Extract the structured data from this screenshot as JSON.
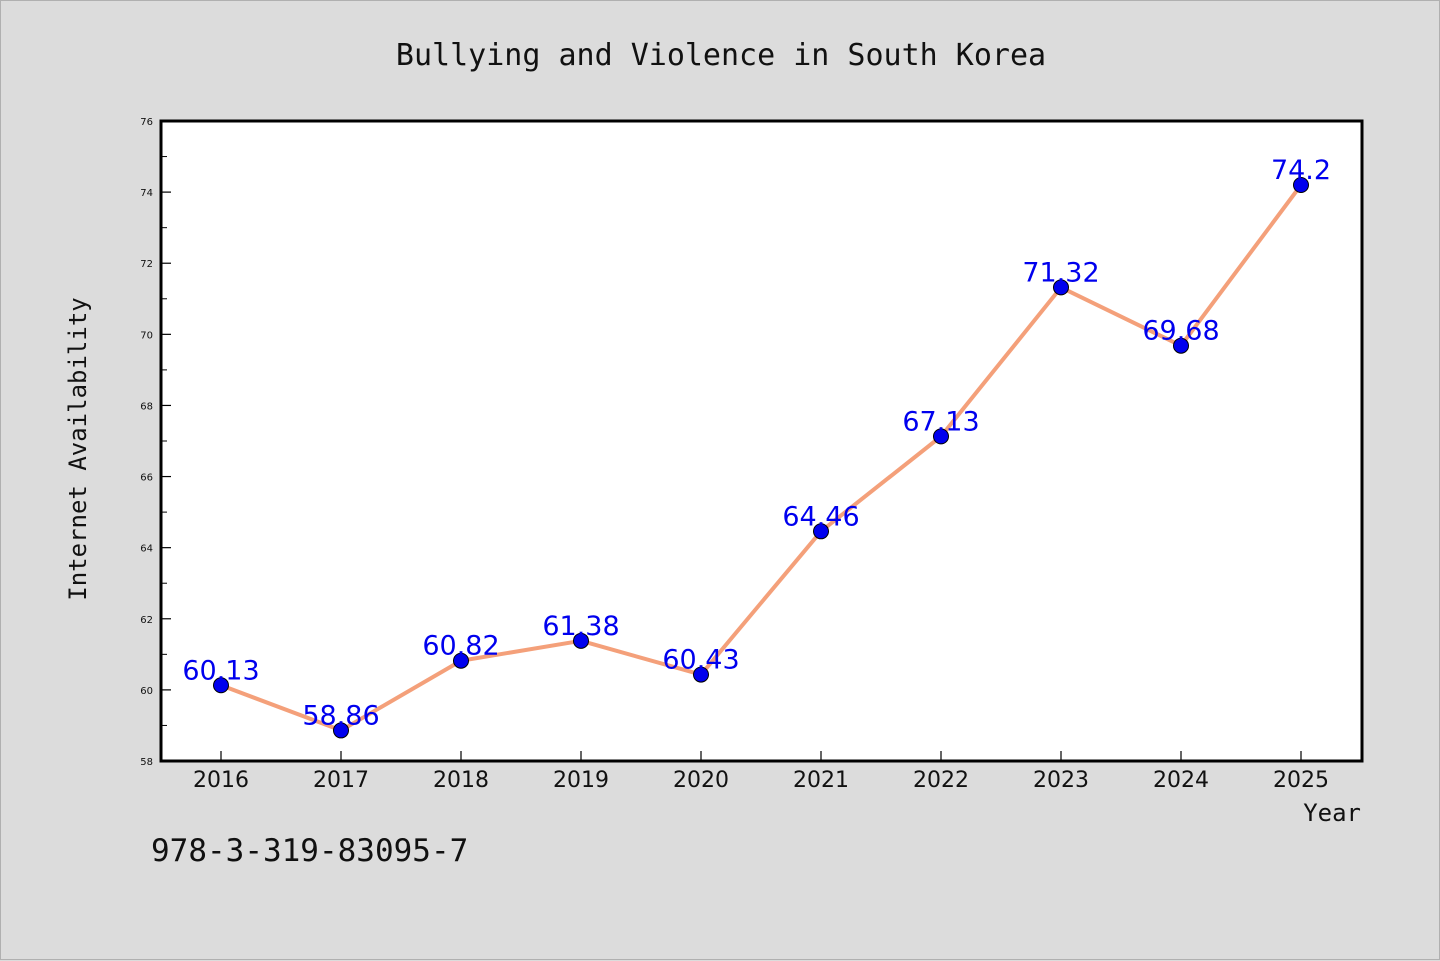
{
  "chart_data": {
    "type": "line",
    "title": "Bullying and Violence in South Korea",
    "xlabel": "Year",
    "ylabel": "Internet Availability",
    "categories": [
      "2016",
      "2017",
      "2018",
      "2019",
      "2020",
      "2021",
      "2022",
      "2023",
      "2024",
      "2025"
    ],
    "series": [
      {
        "values": [
          60.13,
          58.86,
          60.82,
          61.38,
          60.43,
          64.46,
          67.13,
          71.32,
          69.68,
          74.2
        ],
        "labels": [
          "60.13",
          "58.86",
          "60.82",
          "61.38",
          "60.43",
          "64.46",
          "67.13",
          "71.32",
          "69.68",
          "74.2"
        ],
        "line_color": "#f4a07a",
        "marker_color": "#0000ee",
        "label_color": "#0000ee"
      }
    ],
    "ylim": [
      58,
      76
    ],
    "yticks": [
      "58",
      "60",
      "62",
      "64",
      "66",
      "68",
      "70",
      "72",
      "74",
      "76"
    ],
    "grid": false,
    "legend": "none"
  },
  "footer": {
    "code": "978-3-319-83095-7"
  },
  "colors": {
    "background": "#dcdcdc",
    "plot_background": "#ffffff",
    "axis": "#000000"
  }
}
